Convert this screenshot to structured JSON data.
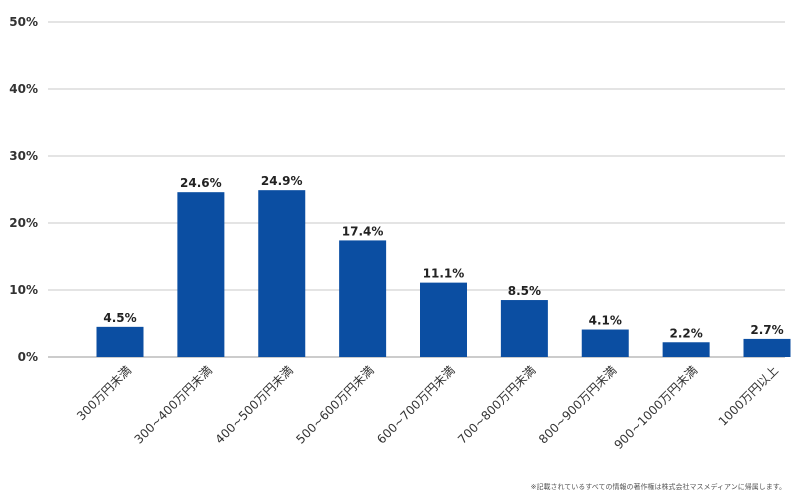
{
  "chart_data": {
    "type": "bar",
    "title": "",
    "xlabel": "",
    "ylabel": "",
    "categories": [
      "300万円未満",
      "300~400万円未満",
      "400~500万円未満",
      "500~600万円未満",
      "600~700万円未満",
      "700~800万円未満",
      "800~900万円未満",
      "900~1000万円未満",
      "1000万円以上"
    ],
    "values": [
      4.5,
      24.6,
      24.9,
      17.4,
      11.1,
      8.5,
      4.1,
      2.2,
      2.7
    ],
    "value_labels": [
      "4.5%",
      "24.6%",
      "24.9%",
      "17.4%",
      "11.1%",
      "8.5%",
      "4.1%",
      "2.2%",
      "2.7%"
    ],
    "ylim": [
      0,
      50
    ],
    "yticks": [
      0,
      10,
      20,
      30,
      40,
      50
    ],
    "ytick_labels": [
      "0%",
      "10%",
      "20%",
      "30%",
      "40%",
      "50%"
    ],
    "grid": true,
    "legend": "none",
    "bar_color": "#0b4ea2"
  },
  "footnote": "※記載されているすべての情報の著作権は株式会社マスメディアンに帰属します。"
}
